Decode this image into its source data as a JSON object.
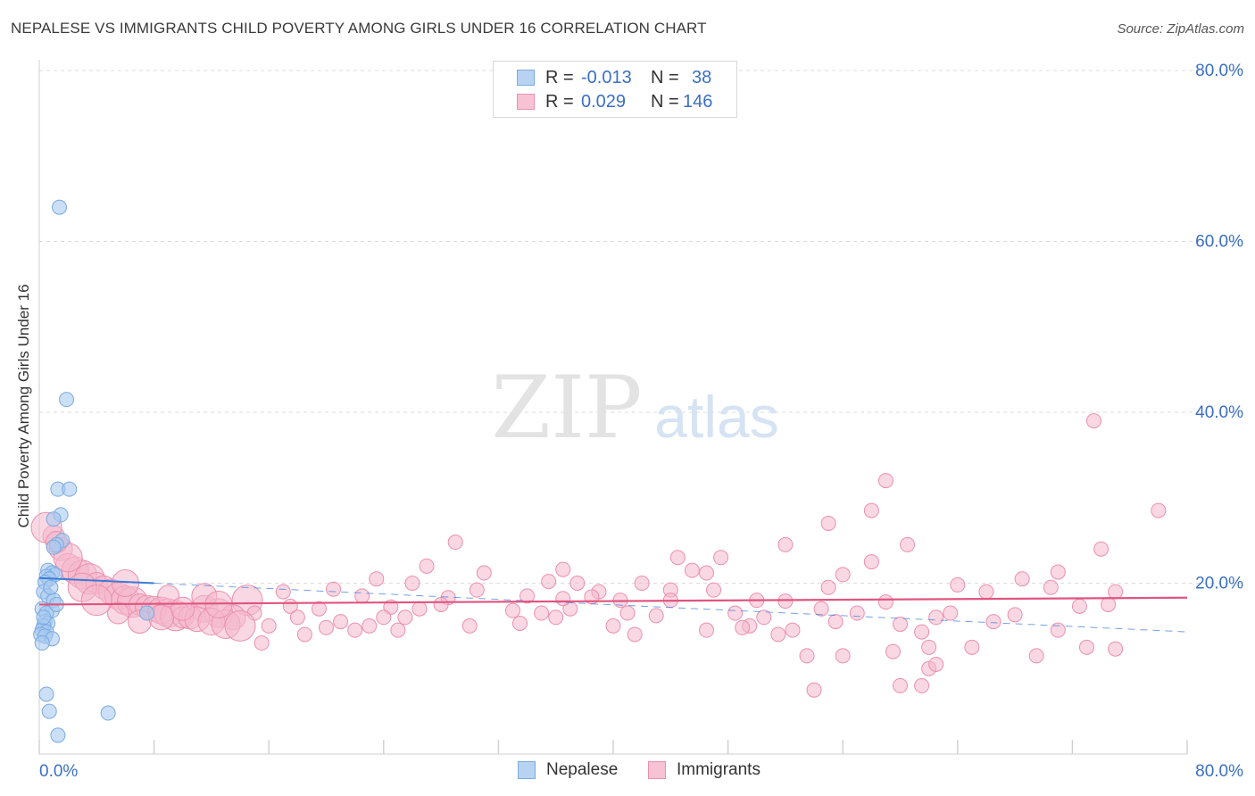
{
  "header": {
    "title": "NEPALESE VS IMMIGRANTS CHILD POVERTY AMONG GIRLS UNDER 16 CORRELATION CHART",
    "source": "Source: ZipAtlas.com"
  },
  "watermark": {
    "zip": "ZIP",
    "atlas": "atlas"
  },
  "legend_top": {
    "rows": [
      {
        "r_label": "R =",
        "r_value": "-0.013",
        "n_label": "N =",
        "n_value": "38",
        "color": "#4a90d9"
      },
      {
        "r_label": "R =",
        "r_value": "0.029",
        "n_label": "N =",
        "n_value": "146",
        "color": "#e87aa0"
      }
    ]
  },
  "legend_bottom": {
    "series1": "Nepalese",
    "series2": "Immigrants"
  },
  "chart_data": {
    "type": "scatter",
    "title": "NEPALESE VS IMMIGRANTS CHILD POVERTY AMONG GIRLS UNDER 16 CORRELATION CHART",
    "xlabel": "",
    "ylabel": "Child Poverty Among Girls Under 16",
    "xlim": [
      0,
      80
    ],
    "ylim": [
      0,
      80
    ],
    "x_tick_labels": [
      "0.0%",
      "80.0%"
    ],
    "y_tick_labels": [
      "20.0%",
      "40.0%",
      "60.0%",
      "80.0%"
    ],
    "y_ticks": [
      20,
      40,
      60,
      80
    ],
    "grid": true,
    "legend": "top-center",
    "series": [
      {
        "name": "Nepalese",
        "color": "#4a90d9",
        "fill": "#a9c9f0",
        "R": -0.013,
        "N": 38,
        "trend": {
          "x0": 0,
          "y0": 20.6,
          "x1": 8,
          "y1": 20.0,
          "x2": 80,
          "y2": 14.3
        },
        "points": [
          [
            1.4,
            64.0
          ],
          [
            1.9,
            41.5
          ],
          [
            1.3,
            31.0
          ],
          [
            2.1,
            31.0
          ],
          [
            1.5,
            28.0
          ],
          [
            1.0,
            27.5
          ],
          [
            1.6,
            25.0
          ],
          [
            1.2,
            24.5
          ],
          [
            1.0,
            24.2
          ],
          [
            0.6,
            21.5
          ],
          [
            0.9,
            21.2
          ],
          [
            1.1,
            21.0
          ],
          [
            0.5,
            20.8
          ],
          [
            0.7,
            20.5
          ],
          [
            0.4,
            20.1
          ],
          [
            0.3,
            19.0
          ],
          [
            0.6,
            18.5
          ],
          [
            1.0,
            18.0
          ],
          [
            0.2,
            17.0
          ],
          [
            0.9,
            16.8
          ],
          [
            0.5,
            16.5
          ],
          [
            0.4,
            15.5
          ],
          [
            0.6,
            15.3
          ],
          [
            0.3,
            15.0
          ],
          [
            0.2,
            14.5
          ],
          [
            0.5,
            14.3
          ],
          [
            0.1,
            14.0
          ],
          [
            0.4,
            13.8
          ],
          [
            0.9,
            13.5
          ],
          [
            0.2,
            13.0
          ],
          [
            0.5,
            7.0
          ],
          [
            0.7,
            5.0
          ],
          [
            4.8,
            4.8
          ],
          [
            1.3,
            2.2
          ],
          [
            7.5,
            16.5
          ],
          [
            0.8,
            19.5
          ],
          [
            1.2,
            17.5
          ],
          [
            0.3,
            16.0
          ]
        ]
      },
      {
        "name": "Immigrants",
        "color": "#e0557f",
        "fill": "#f4b8cc",
        "R": 0.029,
        "N": 146,
        "trend": {
          "x0": 0,
          "y0": 17.5,
          "x1": 80,
          "y1": 18.3
        },
        "points": [
          [
            73.5,
            39.0
          ],
          [
            59.0,
            32.0
          ],
          [
            78.0,
            28.5
          ],
          [
            58.0,
            28.5
          ],
          [
            55.0,
            27.0
          ],
          [
            60.5,
            24.5
          ],
          [
            52.0,
            24.5
          ],
          [
            74.0,
            24.0
          ],
          [
            29.0,
            24.8
          ],
          [
            44.5,
            23.0
          ],
          [
            47.5,
            23.0
          ],
          [
            58.0,
            22.5
          ],
          [
            27.0,
            22.0
          ],
          [
            36.5,
            21.6
          ],
          [
            31.0,
            21.2
          ],
          [
            45.5,
            21.5
          ],
          [
            46.5,
            21.2
          ],
          [
            56.0,
            21.0
          ],
          [
            71.0,
            21.3
          ],
          [
            68.5,
            20.5
          ],
          [
            23.5,
            20.5
          ],
          [
            26.0,
            20.0
          ],
          [
            35.5,
            20.2
          ],
          [
            37.5,
            20.0
          ],
          [
            42.0,
            20.0
          ],
          [
            55.0,
            19.5
          ],
          [
            64.0,
            19.8
          ],
          [
            70.5,
            19.5
          ],
          [
            20.5,
            19.3
          ],
          [
            17.0,
            19.0
          ],
          [
            30.5,
            19.2
          ],
          [
            39.0,
            19.0
          ],
          [
            44.0,
            19.2
          ],
          [
            47.0,
            19.2
          ],
          [
            66.0,
            19.0
          ],
          [
            75.0,
            19.0
          ],
          [
            22.5,
            18.5
          ],
          [
            28.5,
            18.3
          ],
          [
            34.0,
            18.5
          ],
          [
            38.5,
            18.4
          ],
          [
            40.5,
            18.0
          ],
          [
            44.0,
            18.0
          ],
          [
            50.0,
            18.0
          ],
          [
            52.0,
            17.9
          ],
          [
            59.0,
            17.8
          ],
          [
            72.5,
            17.3
          ],
          [
            74.5,
            17.5
          ],
          [
            14.5,
            18.0
          ],
          [
            17.5,
            17.3
          ],
          [
            19.5,
            17.0
          ],
          [
            24.5,
            17.2
          ],
          [
            26.5,
            17.0
          ],
          [
            28.0,
            17.5
          ],
          [
            33.0,
            16.8
          ],
          [
            37.0,
            17.0
          ],
          [
            41.0,
            16.5
          ],
          [
            48.5,
            16.5
          ],
          [
            50.5,
            16.0
          ],
          [
            54.5,
            17.0
          ],
          [
            57.0,
            16.5
          ],
          [
            62.5,
            16.0
          ],
          [
            63.5,
            16.5
          ],
          [
            68.0,
            16.3
          ],
          [
            11.5,
            17.0
          ],
          [
            12.5,
            16.5
          ],
          [
            15.0,
            16.5
          ],
          [
            18.0,
            16.0
          ],
          [
            21.0,
            15.5
          ],
          [
            23.0,
            15.0
          ],
          [
            24.0,
            16.0
          ],
          [
            25.5,
            16.0
          ],
          [
            35.0,
            16.5
          ],
          [
            36.0,
            16.0
          ],
          [
            43.0,
            16.2
          ],
          [
            49.5,
            15.0
          ],
          [
            55.5,
            15.5
          ],
          [
            60.0,
            15.2
          ],
          [
            66.5,
            15.5
          ],
          [
            16.0,
            15.0
          ],
          [
            20.0,
            14.8
          ],
          [
            22.0,
            14.5
          ],
          [
            25.0,
            14.5
          ],
          [
            30.0,
            15.0
          ],
          [
            33.5,
            15.3
          ],
          [
            40.0,
            15.0
          ],
          [
            41.5,
            14.0
          ],
          [
            46.5,
            14.5
          ],
          [
            49.0,
            14.8
          ],
          [
            51.5,
            14.0
          ],
          [
            52.5,
            14.5
          ],
          [
            61.5,
            14.3
          ],
          [
            71.0,
            14.5
          ],
          [
            13.5,
            16.0
          ],
          [
            18.5,
            14.0
          ],
          [
            15.5,
            13.0
          ],
          [
            59.5,
            12.0
          ],
          [
            62.0,
            12.5
          ],
          [
            65.0,
            12.5
          ],
          [
            73.0,
            12.5
          ],
          [
            75.0,
            12.3
          ],
          [
            53.5,
            11.5
          ],
          [
            56.0,
            11.5
          ],
          [
            69.5,
            11.5
          ],
          [
            62.0,
            10.0
          ],
          [
            62.5,
            10.5
          ],
          [
            60.0,
            8.0
          ],
          [
            61.5,
            8.0
          ],
          [
            54.0,
            7.5
          ],
          [
            1.0,
            25.5
          ],
          [
            1.5,
            24.0
          ],
          [
            2.0,
            22.0
          ],
          [
            2.5,
            21.5
          ],
          [
            3.0,
            21.0
          ],
          [
            3.5,
            20.5
          ],
          [
            4.0,
            20.0
          ],
          [
            4.5,
            19.5
          ],
          [
            5.0,
            19.0
          ],
          [
            5.5,
            18.5
          ],
          [
            6.0,
            18.0
          ],
          [
            6.5,
            17.8
          ],
          [
            7.0,
            17.5
          ],
          [
            7.5,
            17.2
          ],
          [
            8.0,
            17.0
          ],
          [
            8.5,
            16.8
          ],
          [
            9.0,
            16.5
          ],
          [
            9.5,
            16.2
          ],
          [
            10.0,
            16.0
          ],
          [
            10.5,
            16.0
          ],
          [
            11.0,
            15.8
          ],
          [
            12.0,
            15.5
          ],
          [
            13.0,
            15.2
          ],
          [
            14.0,
            15.0
          ],
          [
            5.5,
            16.5
          ],
          [
            7.0,
            15.5
          ],
          [
            8.5,
            16.0
          ],
          [
            6.0,
            20.0
          ],
          [
            3.0,
            19.5
          ],
          [
            4.0,
            18.0
          ],
          [
            9.0,
            18.5
          ],
          [
            10.0,
            17.0
          ],
          [
            11.5,
            18.5
          ],
          [
            12.5,
            17.5
          ],
          [
            2.0,
            23.0
          ],
          [
            0.5,
            26.5
          ],
          [
            1.2,
            24.8
          ],
          [
            36.5,
            18.2
          ]
        ]
      }
    ]
  }
}
